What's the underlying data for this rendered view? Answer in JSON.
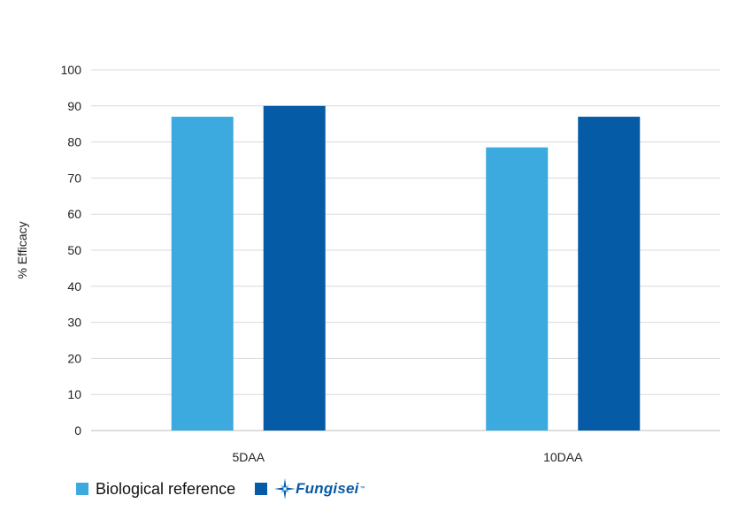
{
  "chart_data": {
    "type": "bar",
    "categories": [
      "5DAA",
      "10DAA"
    ],
    "series": [
      {
        "name": "Biological reference",
        "color": "#3daadf",
        "values": [
          87,
          78.5
        ]
      },
      {
        "name": "Fungisei",
        "color": "#055ba5",
        "values": [
          90,
          87
        ]
      }
    ],
    "ylabel": "% Efficacy",
    "xlabel": "",
    "ylim": [
      0,
      100
    ],
    "yticks": [
      0,
      10,
      20,
      30,
      40,
      50,
      60,
      70,
      80,
      90,
      100
    ],
    "grid": true,
    "legend_position": "bottom-left"
  },
  "legend": {
    "items": [
      {
        "label": "Biological reference",
        "color": "#3daadf"
      },
      {
        "label": "Fungisei",
        "color": "#055ba5",
        "logo_icon": "star-compass-icon",
        "trademark": "™"
      }
    ]
  }
}
